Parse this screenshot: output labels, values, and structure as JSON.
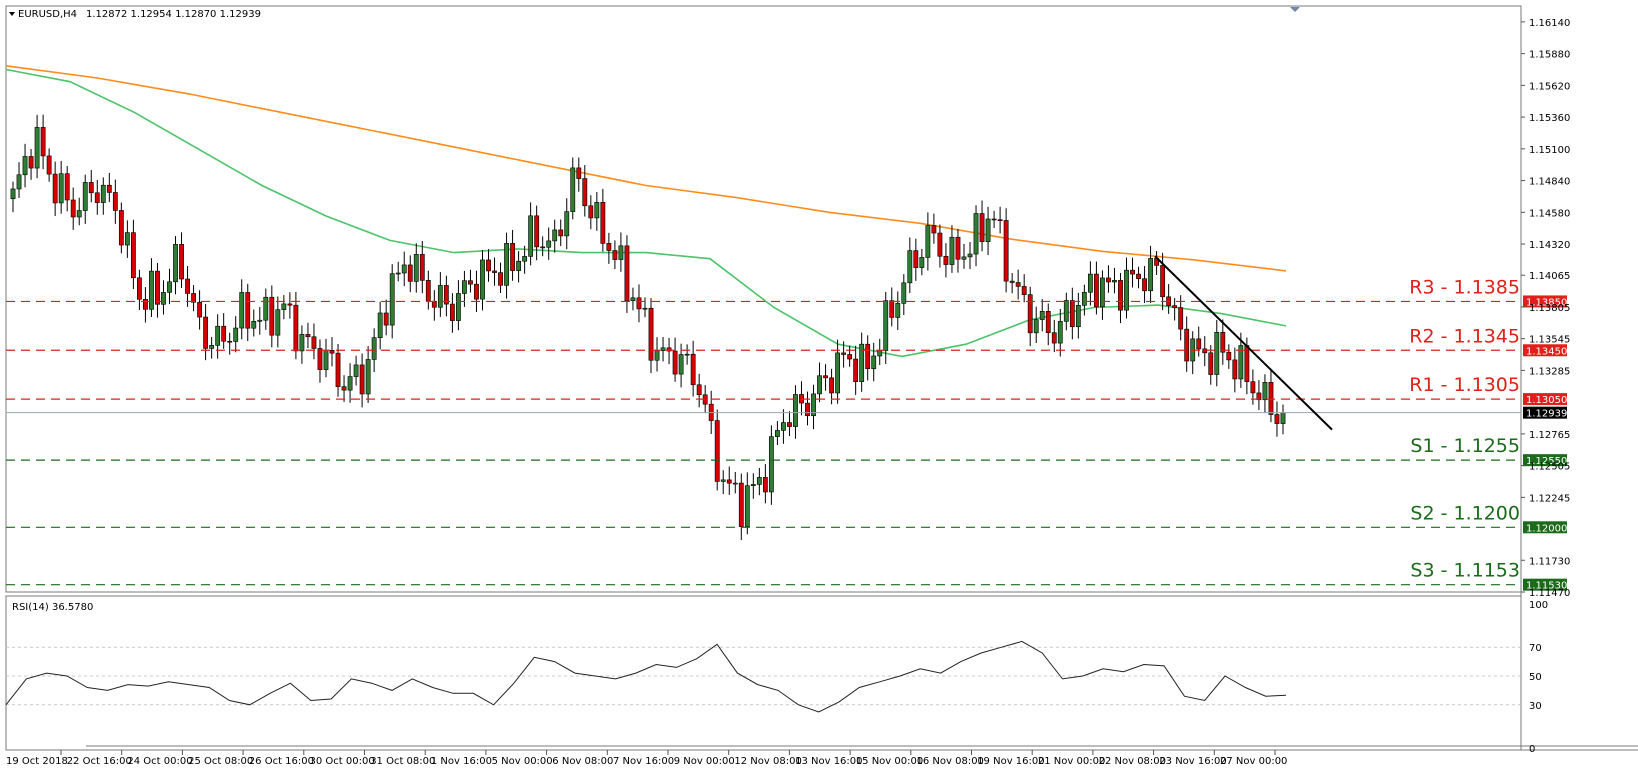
{
  "header": {
    "symbol": "EURUSD,H4",
    "ohlc": "1.12872 1.12954 1.12870 1.12939"
  },
  "rsi_panel": {
    "label": "RSI(14) 36.5780",
    "levels": [
      "100",
      "70",
      "50",
      "30",
      "0"
    ]
  },
  "colors": {
    "bull": "#2e7d32",
    "bear": "#d50000",
    "ma_fast": "#4cc36a",
    "ma_slow": "#ff8c1a",
    "resistance": "#e0201a",
    "support": "#1a6b1a",
    "trendline": "#000000",
    "rsi_line": "#222222",
    "grid": "#c8c8c8"
  },
  "chart_data": [
    {
      "type": "candlestick",
      "title": "EURUSD,H4",
      "ylim": [
        1.1147,
        1.1627
      ],
      "y_ticks": [
        "1.16140",
        "1.15880",
        "1.15620",
        "1.15360",
        "1.15100",
        "1.14840",
        "1.14580",
        "1.14320",
        "1.14065",
        "1.13805",
        "1.13545",
        "1.13285",
        "1.12765",
        "1.12505",
        "1.12245",
        "1.11730",
        "1.11470"
      ],
      "x_ticks": [
        "19 Oct 2018",
        "22 Oct 16:00",
        "24 Oct 00:00",
        "25 Oct 08:00",
        "26 Oct 16:00",
        "30 Oct 00:00",
        "31 Oct 08:00",
        "1 Nov 16:00",
        "5 Nov 00:00",
        "6 Nov 08:00",
        "7 Nov 16:00",
        "9 Nov 00:00",
        "12 Nov 08:00",
        "13 Nov 16:00",
        "15 Nov 00:00",
        "16 Nov 08:00",
        "19 Nov 16:00",
        "21 Nov 00:00",
        "22 Nov 08:00",
        "23 Nov 16:00",
        "27 Nov 00:00"
      ],
      "close_anchors": [
        1.147,
        1.152,
        1.148,
        1.146,
        1.148,
        1.146,
        1.139,
        1.139,
        1.142,
        1.136,
        1.135,
        1.1375,
        1.137,
        1.138,
        1.135,
        1.134,
        1.1315,
        1.133,
        1.139,
        1.142,
        1.139,
        1.138,
        1.14,
        1.141,
        1.1415,
        1.144,
        1.143,
        1.149,
        1.145,
        1.142,
        1.138,
        1.134,
        1.134,
        1.1315,
        1.124,
        1.122,
        1.124,
        1.129,
        1.13,
        1.132,
        1.134,
        1.133,
        1.137,
        1.141,
        1.144,
        1.142,
        1.143,
        1.146,
        1.14,
        1.137,
        1.136,
        1.138,
        1.14,
        1.1395,
        1.1405,
        1.141,
        1.136,
        1.134,
        1.1345,
        1.133,
        1.1305,
        1.129
      ],
      "last_close": 1.12939,
      "candle_count": 212,
      "series": [
        {
          "name": "",
          "type": "line",
          "values": [
            1.1575,
            1.1565,
            1.154,
            1.151,
            1.148,
            1.1455,
            1.1435,
            1.1425,
            1.1428,
            1.1425,
            1.1425,
            1.142,
            1.138,
            1.135,
            1.134,
            1.135,
            1.137,
            1.138,
            1.1382,
            1.1375,
            1.1365
          ]
        },
        {
          "name": "",
          "type": "line",
          "values": [
            1.1578,
            1.1568,
            1.1555,
            1.154,
            1.1525,
            1.151,
            1.1495,
            1.148,
            1.147,
            1.1458,
            1.1449,
            1.1436,
            1.1426,
            1.1419,
            1.141
          ]
        }
      ],
      "levels": [
        {
          "label": "R3 - 1.1385",
          "value": 1.1385,
          "tag": "1.13850",
          "kind": "resistance"
        },
        {
          "label": "R2 - 1.1345",
          "value": 1.1345,
          "tag": "1.13450",
          "kind": "resistance"
        },
        {
          "label": "R1 - 1.1305",
          "value": 1.1305,
          "tag": "1.13050",
          "kind": "resistance"
        },
        {
          "label": "S1 - 1.1255",
          "value": 1.1255,
          "tag": "1.12550",
          "kind": "support"
        },
        {
          "label": "S2 - 1.1200",
          "value": 1.12,
          "tag": "1.12000",
          "kind": "support"
        },
        {
          "label": "S3 - 1.1153",
          "value": 1.1153,
          "tag": "1.11530",
          "kind": "support"
        }
      ],
      "trendline": {
        "from": {
          "x": "22 Nov 08:00",
          "y": 1.1422
        },
        "to": {
          "x": "27 Nov 00:00",
          "y": 1.128
        }
      }
    },
    {
      "type": "line",
      "title": "RSI(14) 36.5780",
      "ylim": [
        0,
        100
      ],
      "y_ticks": [
        "100",
        "70",
        "50",
        "30",
        "0"
      ],
      "guide_levels": [
        70,
        50,
        30
      ],
      "values": [
        30,
        48,
        52,
        50,
        42,
        40,
        44,
        43,
        46,
        44,
        42,
        33,
        30,
        38,
        45,
        33,
        34,
        48,
        45,
        40,
        48,
        42,
        38,
        38,
        30,
        45,
        63,
        60,
        52,
        50,
        48,
        52,
        58,
        56,
        62,
        72,
        52,
        44,
        40,
        30,
        25,
        32,
        42,
        46,
        50,
        55,
        52,
        60,
        66,
        70,
        74,
        66,
        48,
        50,
        55,
        53,
        58,
        57,
        36,
        33,
        50,
        42,
        36,
        36.578
      ]
    }
  ]
}
